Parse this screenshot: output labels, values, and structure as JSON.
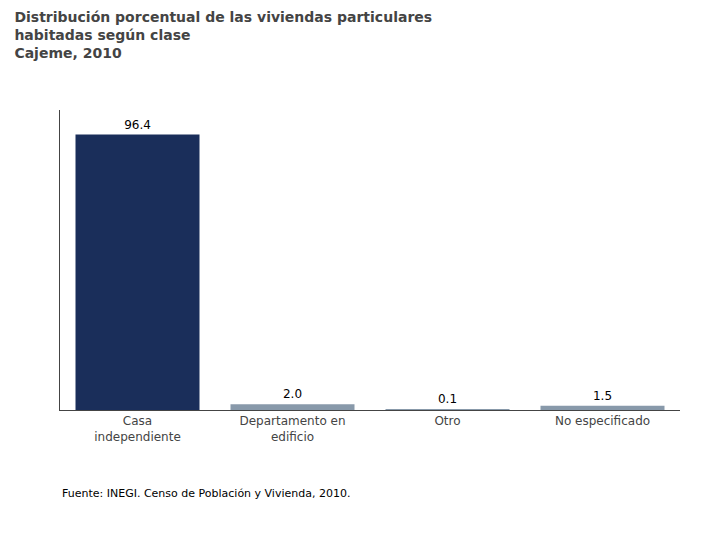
{
  "chart_data": {
    "type": "bar",
    "title": "Distribución porcentual de las viviendas particulares\nhabitadas según clase\nCajeme, 2010",
    "categories": [
      "Casa\nindependiente",
      "Departamento en\nedificio",
      "Otro",
      "No especificado"
    ],
    "values": [
      96.4,
      2.0,
      0.1,
      1.5
    ],
    "value_labels": [
      "96.4",
      "2.0",
      "0.1",
      "1.5"
    ],
    "colors": [
      "#1a2e5a",
      "#8899aa",
      "#8899aa",
      "#8899aa"
    ],
    "data_labels": true,
    "ylim": [
      0,
      105
    ],
    "yticks": [],
    "tick_labels": "x",
    "grid": false,
    "annotations": [
      "Fuente: INEGI. Censo de Población y Vivienda, 2010."
    ]
  }
}
